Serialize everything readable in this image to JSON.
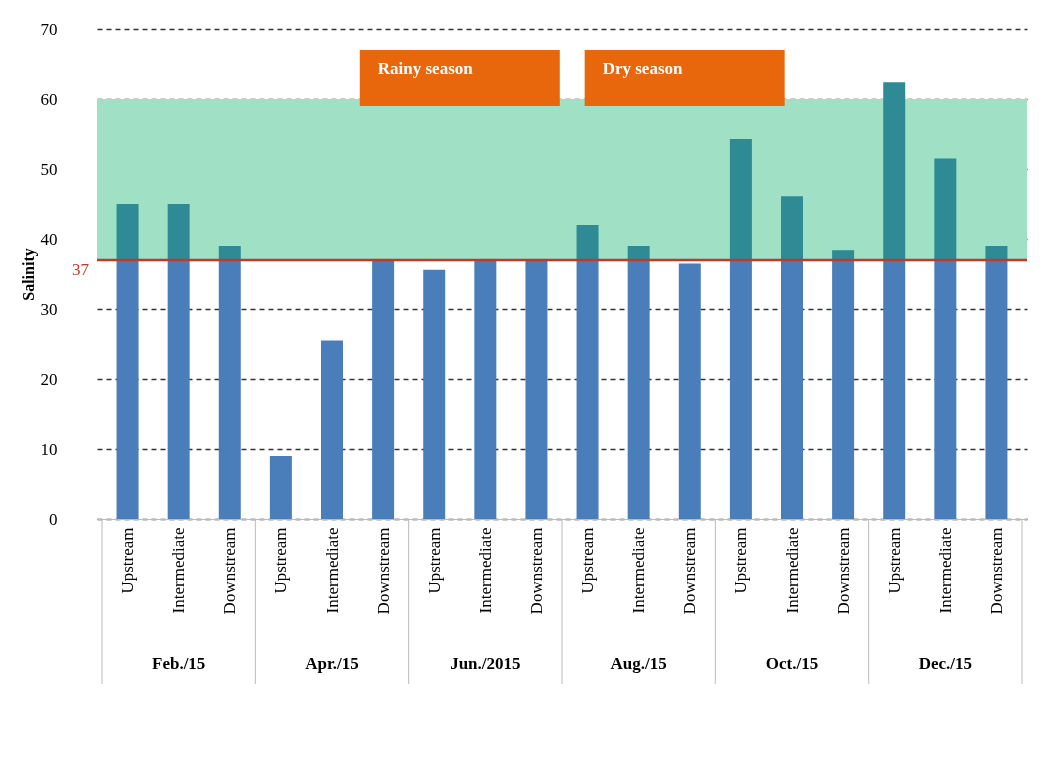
{
  "chart_data": {
    "type": "bar",
    "stacked": true,
    "ylabel": "Salinity",
    "categories": [
      "Upstream",
      "Intermediate",
      "Downstream",
      "Upstream",
      "Intermediate",
      "Downstream",
      "Upstream",
      "Intermediate",
      "Downstream",
      "Upstream",
      "Intermediate",
      "Downstream",
      "Upstream",
      "Intermediate",
      "Downstream",
      "Upstream",
      "Intermediate",
      "Downstream"
    ],
    "series": [
      {
        "color": "#4a7ebb",
        "values": [
          37,
          37,
          37,
          9,
          25.5,
          37,
          35.6,
          37,
          37,
          37,
          37,
          36.5,
          37,
          37,
          37,
          37,
          37,
          37
        ]
      },
      {
        "color": "#2e8b96",
        "values": [
          8,
          8,
          2,
          null,
          null,
          null,
          null,
          null,
          null,
          5,
          2,
          null,
          17.3,
          9.1,
          1.4,
          25.4,
          14.5,
          2
        ]
      }
    ],
    "ylim": [
      0,
      70
    ],
    "yticks": [
      0,
      10,
      20,
      30,
      40,
      50,
      60,
      70
    ],
    "grid": "y",
    "line_style": "dashed",
    "ref_lines": [
      {
        "axis": "y",
        "value": 37,
        "label": "37",
        "color": "#c0392b"
      }
    ],
    "bands": [
      {
        "axis": "y",
        "from": 37,
        "to": 60,
        "color": "#a0e0c4"
      }
    ],
    "annotations": [
      "Feb./15",
      "Apr./15",
      "Jun./2015",
      "Aug./15",
      "Oct./15",
      "Dec./15",
      "Rainy season",
      "Dry season"
    ]
  }
}
